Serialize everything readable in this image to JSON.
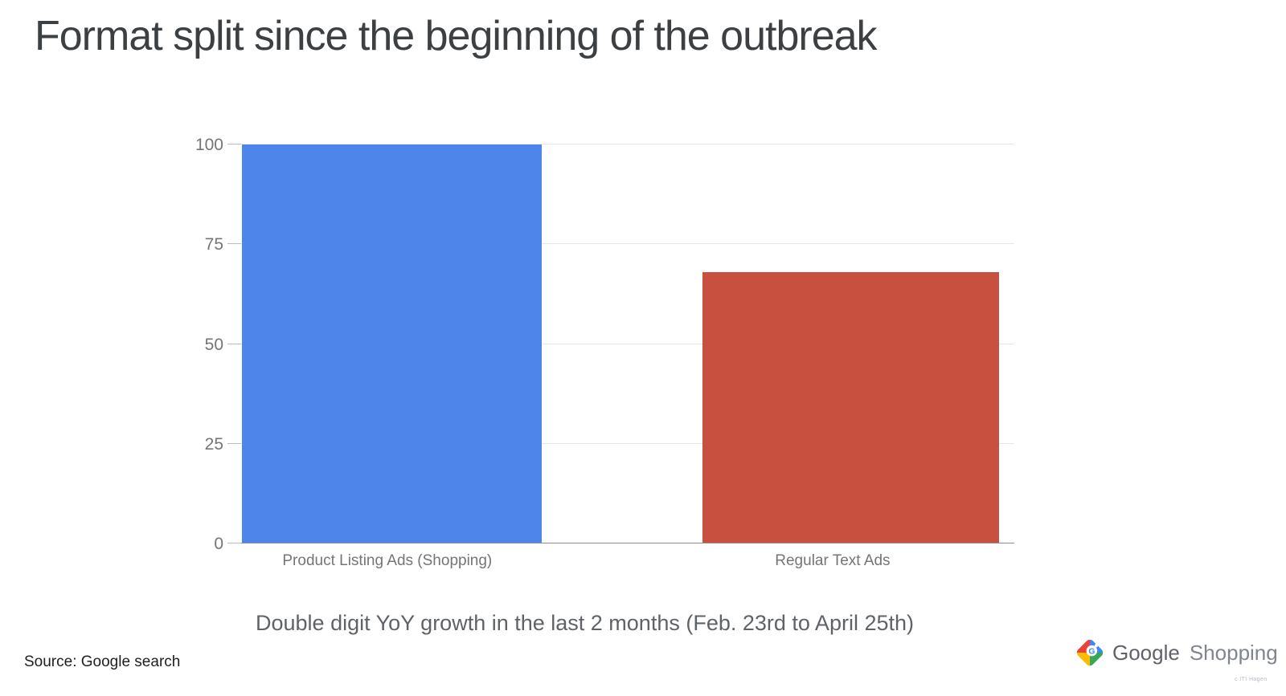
{
  "slide": {
    "title": "Format split since the beginning of the outbreak",
    "caption": "Double digit YoY growth in the last 2 months (Feb. 23rd to April 25th)",
    "source_note": "Source: Google search",
    "fine_print": "c ITI Hagen",
    "background_color": "#ffffff",
    "title_color": "#3c4043"
  },
  "logo": {
    "brand": "Google",
    "product": "Shopping",
    "icon": "google-shopping-tag-icon",
    "icon_colors": {
      "blue": "#4285F4",
      "red": "#EA4335",
      "yellow": "#FBBC04",
      "green": "#34A853"
    },
    "brand_color": "#5f6368",
    "product_color": "#80868b"
  },
  "chart_data": {
    "type": "bar",
    "title": "Format split since the beginning of the outbreak",
    "categories": [
      "Product Listing Ads (Shopping)",
      "Regular Text Ads"
    ],
    "values": [
      100,
      68
    ],
    "bar_colors": [
      "#4D85EA",
      "#C7503F"
    ],
    "ylim": [
      0,
      100
    ],
    "yticks": [
      0,
      25,
      50,
      75,
      100
    ],
    "grid": true,
    "legend_position": "none",
    "axis_label_color": "#757575",
    "gridline_color": "#e6e6e6",
    "baseline_color": "#8f8f8f",
    "caption": "Double digit YoY growth in the last 2 months (Feb. 23rd to April 25th)"
  }
}
